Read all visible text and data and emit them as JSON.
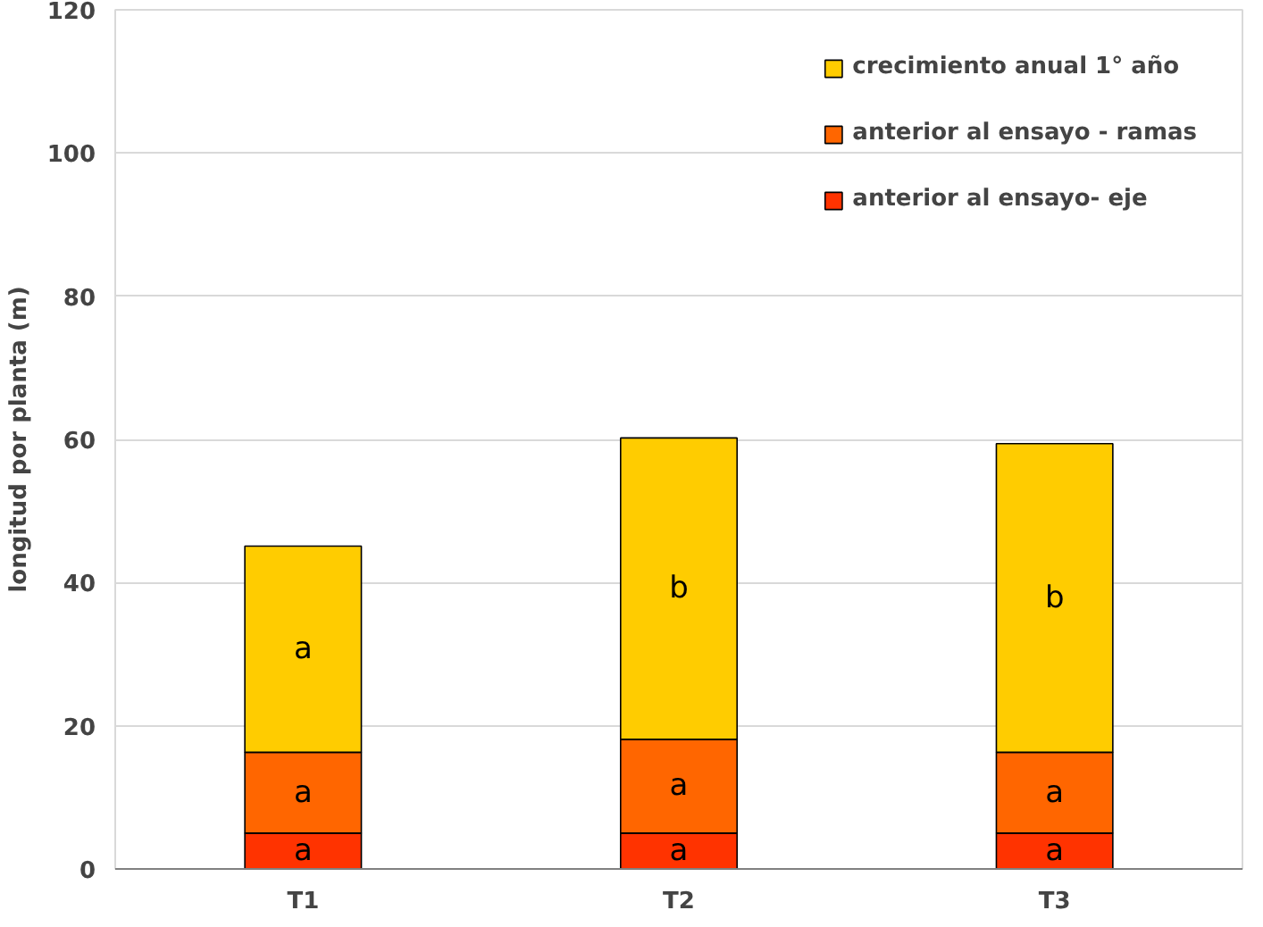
{
  "chart_data": {
    "type": "bar",
    "stacked": true,
    "ylabel": "longitud por planta (m)",
    "categories": [
      "T1",
      "T2",
      "T3"
    ],
    "series": [
      {
        "name": "anterior al ensayo- eje",
        "color": "#ff3300",
        "values": [
          5.0,
          5.0,
          5.0
        ],
        "value_labels": [
          "a",
          "a",
          "a"
        ]
      },
      {
        "name": "anterior al ensayo - ramas",
        "color": "#ff6600",
        "values": [
          11.3,
          13.1,
          11.3
        ],
        "value_labels": [
          "a",
          "a",
          "a"
        ]
      },
      {
        "name": "crecimiento anual 1° año",
        "color": "#ffcc00",
        "values": [
          28.8,
          42.1,
          43.1
        ],
        "value_labels": [
          "a",
          "b",
          "b"
        ]
      }
    ],
    "ylim": [
      0,
      120
    ],
    "yticks": [
      0,
      20,
      40,
      60,
      80,
      100,
      120
    ],
    "grid": "y",
    "legend": "top right"
  }
}
